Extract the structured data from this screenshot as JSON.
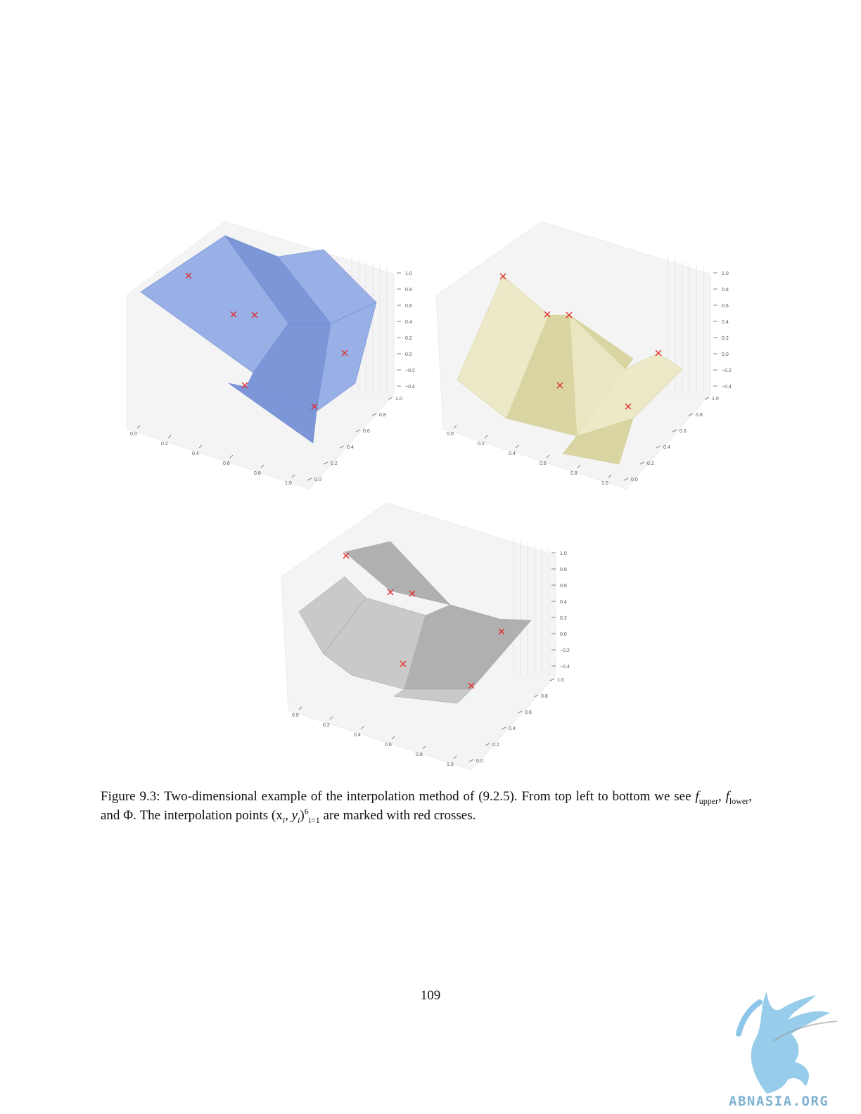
{
  "figure": {
    "number": "Figure 9.3:",
    "caption_text": "Two-dimensional example of the interpolation method of (9.2.5).  From top left to bottom we see",
    "f_upper_base": "f",
    "f_upper_sub": "upper",
    "f_lower_base": "f",
    "f_lower_sub": "lower",
    "and_text": "and",
    "phi_symbol": "Φ",
    "caption_text2": ".  The interpolation points",
    "points_notation": "(x",
    "points_notation_i": "i",
    "points_notation_y": ", y",
    "points_notation_close": ")",
    "points_sup": "6",
    "points_sub": "i=1",
    "caption_text3": "are marked with red crosses.",
    "panels": [
      {
        "id": "upper",
        "surface_color": "#8fa9e6",
        "edge_color": "#6f8cd4"
      },
      {
        "id": "lower",
        "surface_color": "#ebe8c4",
        "edge_color": "#d6d19a"
      },
      {
        "id": "phi",
        "surface_color": "#c4c4c4",
        "edge_color": "#a8a8a8"
      }
    ],
    "marker_color": "#e03030",
    "z_ticks": [
      "1.0",
      "0.8",
      "0.6",
      "0.4",
      "0.2",
      "0.0",
      "−0.2",
      "−0.4"
    ],
    "x_ticks": [
      "0.0",
      "0.2",
      "0.4",
      "0.6",
      "0.8",
      "1.0"
    ],
    "y_ticks": [
      "0.0",
      "0.2",
      "0.4",
      "0.6",
      "0.8",
      "1.0"
    ]
  },
  "page_number": "109",
  "watermark": {
    "text": "ABNASIA.ORG",
    "color": "#7fb2d0"
  }
}
